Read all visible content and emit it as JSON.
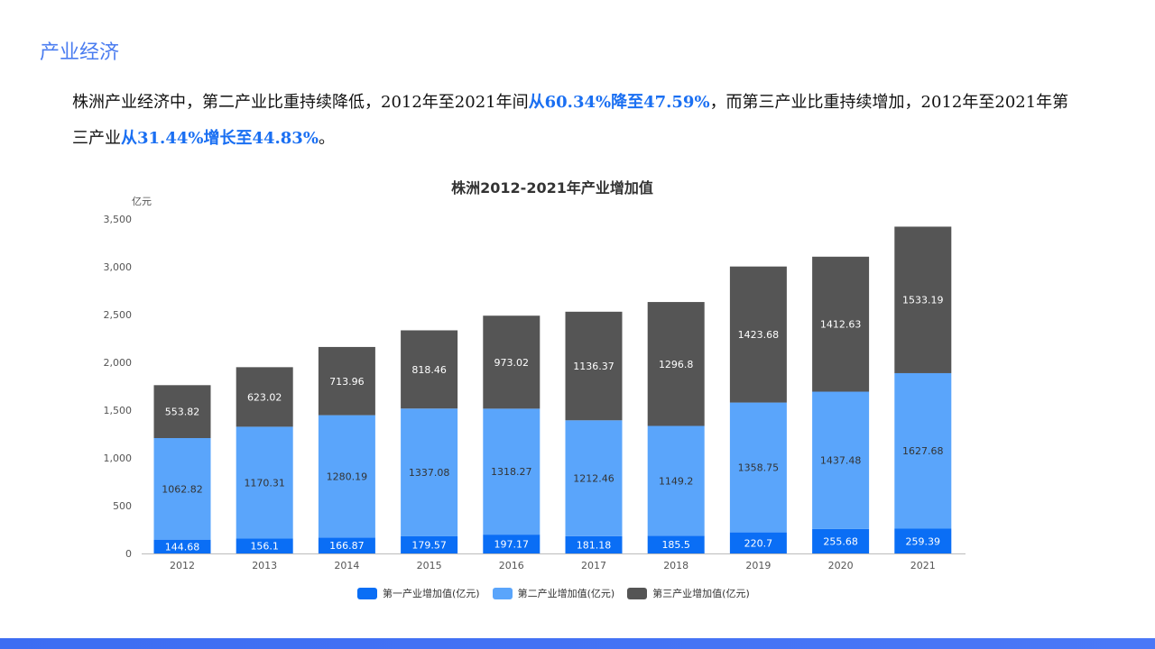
{
  "page": {
    "title": "产业经济",
    "paragraph": {
      "p1": "株洲产业经济中，第二产业比重持续降低，2012年至2021年间",
      "h1": "从60.34%降至47.59%",
      "p2": "，而第三产业比重持续增加，2012年至2021年第三产业",
      "h2": "从31.44%增长至44.83%",
      "p3": "。"
    }
  },
  "chart_data": {
    "type": "bar",
    "stacked": true,
    "title": "株洲2012-2021年产业增加值",
    "ylabel": "亿元",
    "xlabel": "",
    "ylim": [
      0,
      3500
    ],
    "yticks": [
      "0",
      "500",
      "1,000",
      "1,500",
      "2,000",
      "2,500",
      "3,000",
      "3,500"
    ],
    "ytick_values": [
      0,
      500,
      1000,
      1500,
      2000,
      2500,
      3000,
      3500
    ],
    "grid": false,
    "legend_position": "bottom",
    "categories": [
      "2012",
      "2013",
      "2014",
      "2015",
      "2016",
      "2017",
      "2018",
      "2019",
      "2020",
      "2021"
    ],
    "series": [
      {
        "name": "第一产业增加值(亿元)",
        "color": "#0a6ef5",
        "values": [
          144.68,
          156.1,
          166.87,
          179.57,
          197.17,
          181.18,
          185.5,
          220.7,
          255.68,
          259.39
        ]
      },
      {
        "name": "第二产业增加值(亿元)",
        "color": "#5aa5fb",
        "values": [
          1062.82,
          1170.31,
          1280.19,
          1337.08,
          1318.27,
          1212.46,
          1149.2,
          1358.75,
          1437.48,
          1627.68
        ]
      },
      {
        "name": "第三产业增加值(亿元)",
        "color": "#555555",
        "values": [
          553.82,
          623.02,
          713.96,
          818.46,
          973.02,
          1136.37,
          1296.8,
          1423.68,
          1412.63,
          1533.19
        ]
      }
    ]
  }
}
